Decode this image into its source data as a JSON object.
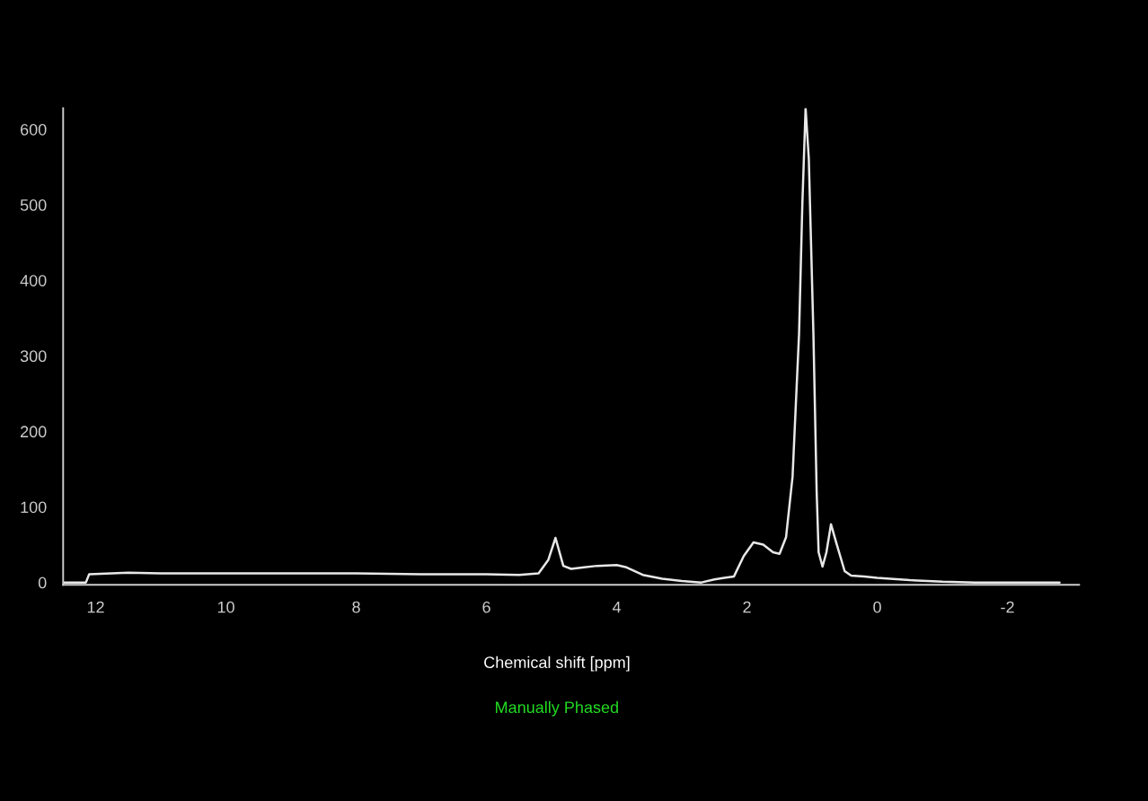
{
  "chart_data": {
    "type": "line",
    "xlabel": "Chemical shift [ppm]",
    "annotations": [
      "Manually Phased"
    ],
    "x": [
      12.5,
      12.15,
      12.1,
      11.5,
      11.0,
      10.0,
      9.0,
      8.0,
      7.0,
      6.0,
      5.5,
      5.2,
      5.05,
      4.94,
      4.82,
      4.7,
      4.5,
      4.3,
      4.0,
      3.85,
      3.6,
      3.3,
      3.0,
      2.7,
      2.5,
      2.35,
      2.2,
      2.05,
      1.9,
      1.75,
      1.6,
      1.5,
      1.4,
      1.3,
      1.2,
      1.15,
      1.1,
      1.05,
      0.98,
      0.93,
      0.9,
      0.84,
      0.78,
      0.71,
      0.62,
      0.5,
      0.4,
      0.2,
      0.0,
      -0.5,
      -1.0,
      -1.5,
      -2.0,
      -2.8
    ],
    "series": [
      {
        "color": "#e8e8e8",
        "values": [
          0,
          0,
          11,
          13,
          12,
          12,
          12,
          12,
          11,
          11,
          10,
          12,
          30,
          59,
          22,
          18,
          20,
          22,
          23,
          20,
          10,
          5,
          2,
          0,
          4,
          6,
          8,
          35,
          53,
          50,
          40,
          38,
          60,
          140,
          330,
          500,
          628,
          560,
          330,
          120,
          40,
          21,
          40,
          77,
          50,
          15,
          9,
          8,
          6,
          3,
          1,
          0,
          0,
          0
        ]
      }
    ],
    "xlim": [
      12.5,
      -3.1
    ],
    "ylim": [
      -3,
      628
    ],
    "xticks": [
      12,
      10,
      8,
      6,
      4,
      2,
      0,
      -2
    ],
    "yticks": [
      0,
      100,
      200,
      300,
      400,
      500,
      600
    ],
    "grid": false,
    "legend": false,
    "marker": "none",
    "line_style": "solid"
  }
}
